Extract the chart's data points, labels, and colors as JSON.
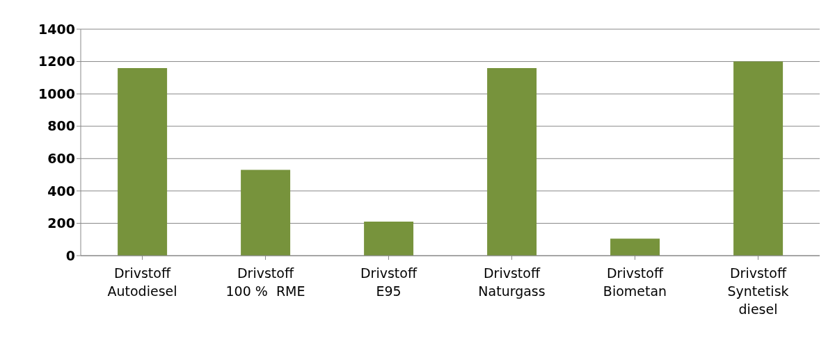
{
  "chart_data": {
    "type": "bar",
    "categories": [
      "Drivstoff\nAutodiesel",
      "Drivstoff\n100 %  RME",
      "Drivstoff\nE95",
      "Drivstoff\nNaturgass",
      "Drivstoff\nBiometan",
      "Drivstoff\nSyntetisk\ndiesel"
    ],
    "values": [
      1160,
      530,
      210,
      1160,
      105,
      1200
    ],
    "color": "#77933c",
    "ylim": [
      0,
      1400
    ],
    "yticks": [
      0,
      200,
      400,
      600,
      800,
      1000,
      1200,
      1400
    ],
    "grid": "y"
  }
}
